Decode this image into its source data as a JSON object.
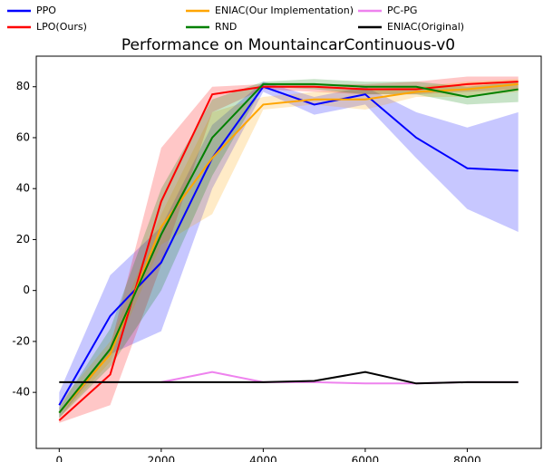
{
  "chart_data": {
    "type": "line",
    "title": "Performance on MountaincarContinuous-v0",
    "x": [
      0,
      1000,
      2000,
      3000,
      4000,
      5000,
      6000,
      7000,
      8000,
      9000
    ],
    "xlim": [
      -450,
      9450
    ],
    "xticks": [
      0,
      2000,
      4000,
      6000,
      8000
    ],
    "ylim": [
      -62,
      92
    ],
    "yticks": [
      -40,
      -20,
      0,
      20,
      40,
      60,
      80
    ],
    "grid": false,
    "legend": "top",
    "series": [
      {
        "name": "PPO",
        "color": "#0000ff",
        "values": [
          -45,
          -10,
          11,
          52,
          80,
          73,
          77,
          60,
          48,
          47
        ],
        "lower": [
          -50,
          -25,
          -16,
          40,
          78,
          69,
          73,
          52,
          32,
          23
        ],
        "upper": [
          -40,
          6,
          25,
          65,
          82,
          76,
          80,
          70,
          64,
          70
        ]
      },
      {
        "name": "LPO(Ours)",
        "color": "#ff0000",
        "values": [
          -51,
          -33,
          35,
          77,
          80,
          80,
          79,
          79,
          81,
          82
        ],
        "lower": [
          -52,
          -45,
          10,
          70,
          79,
          78,
          77,
          77,
          78,
          79
        ],
        "upper": [
          -50,
          -22,
          56,
          80,
          81,
          81,
          81,
          82,
          84,
          84
        ]
      },
      {
        "name": "ENIAC(Our Implementation)",
        "color": "#ffa500",
        "values": [
          -48,
          -25,
          25,
          52,
          73,
          75,
          75,
          78,
          79,
          81
        ],
        "lower": [
          -50,
          -28,
          18,
          30,
          71,
          73,
          71,
          76,
          76,
          78
        ],
        "upper": [
          -44,
          -20,
          30,
          70,
          76,
          78,
          79,
          80,
          82,
          83
        ]
      },
      {
        "name": "RND",
        "color": "#008000",
        "values": [
          -48,
          -23,
          22,
          60,
          81,
          81,
          80,
          80,
          76,
          79
        ],
        "lower": [
          -50,
          -30,
          0,
          45,
          80,
          79,
          77,
          77,
          73,
          74
        ],
        "upper": [
          -46,
          -15,
          40,
          75,
          82,
          83,
          82,
          82,
          80,
          82
        ]
      },
      {
        "name": "PC-PG",
        "color": "#ee82ee",
        "values": [
          null,
          null,
          -36,
          -32,
          -36,
          -36,
          -36.5,
          -36.5,
          -36,
          -36
        ]
      },
      {
        "name": "ENIAC(Original)",
        "color": "#000000",
        "values": [
          -36,
          -36,
          -36,
          -36,
          -36,
          -35.5,
          -32,
          -36.5,
          -36,
          -36
        ]
      }
    ]
  }
}
